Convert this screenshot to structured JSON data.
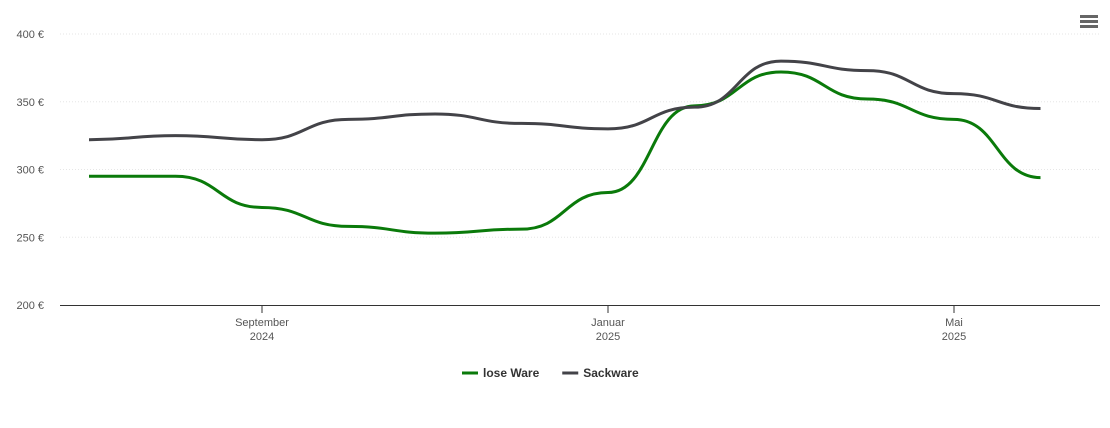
{
  "chart_data": {
    "type": "line",
    "x": [
      "2024-07",
      "2024-08",
      "2024-09",
      "2024-10",
      "2024-11",
      "2024-12",
      "2025-01",
      "2025-02",
      "2025-03",
      "2025-04",
      "2025-05",
      "2025-06"
    ],
    "xticks": [
      {
        "value": "2024-09",
        "label": [
          "September",
          "2024"
        ]
      },
      {
        "value": "2025-01",
        "label": [
          "Januar",
          "2025"
        ]
      },
      {
        "value": "2025-05",
        "label": [
          "Mai",
          "2025"
        ]
      }
    ],
    "series": [
      {
        "name": "lose Ware",
        "color": "#0a7a0a",
        "values": [
          295,
          295,
          272,
          258,
          253,
          256,
          283,
          347,
          372,
          352,
          337,
          294
        ]
      },
      {
        "name": "Sackware",
        "color": "#434348",
        "values": [
          322,
          325,
          322,
          337,
          341,
          334,
          330,
          346,
          380,
          373,
          356,
          345
        ]
      }
    ],
    "ylim": [
      200,
      400
    ],
    "yticks": [
      {
        "value": 200,
        "label": "200 €"
      },
      {
        "value": 250,
        "label": "250 €"
      },
      {
        "value": 300,
        "label": "300 €"
      },
      {
        "value": 350,
        "label": "350 €"
      },
      {
        "value": 400,
        "label": "400 €"
      }
    ],
    "grid": true
  }
}
